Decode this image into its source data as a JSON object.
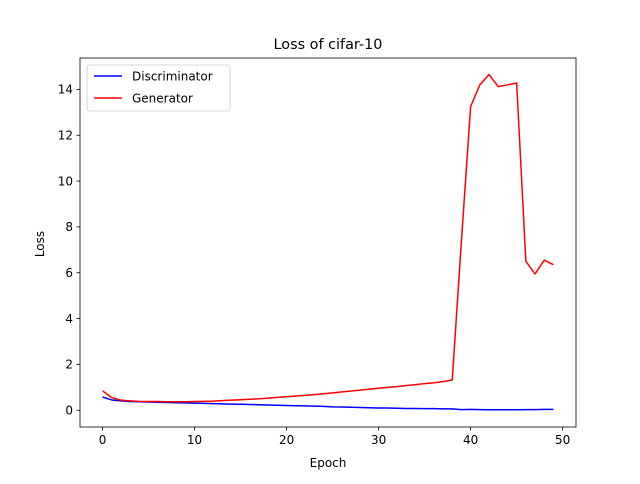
{
  "chart_data": {
    "type": "line",
    "title": "Loss of cifar-10",
    "xlabel": "Epoch",
    "ylabel": "Loss",
    "xlim": [
      -2.45,
      51.45
    ],
    "ylim": [
      -0.73,
      15.37
    ],
    "xticks": [
      0,
      10,
      20,
      30,
      40,
      50
    ],
    "yticks": [
      0,
      2,
      4,
      6,
      8,
      10,
      12,
      14
    ],
    "grid": false,
    "legend_position": "top-left",
    "x": [
      0,
      1,
      2,
      3,
      4,
      5,
      6,
      7,
      8,
      9,
      10,
      11,
      12,
      13,
      14,
      15,
      16,
      17,
      18,
      19,
      20,
      21,
      22,
      23,
      24,
      25,
      26,
      27,
      28,
      29,
      30,
      31,
      32,
      33,
      34,
      35,
      36,
      37,
      38,
      39,
      40,
      41,
      42,
      43,
      44,
      45,
      46,
      47,
      48,
      49
    ],
    "series": [
      {
        "name": "Discriminator",
        "color": "#0000ff",
        "values": [
          0.58,
          0.45,
          0.41,
          0.38,
          0.37,
          0.36,
          0.35,
          0.34,
          0.33,
          0.32,
          0.31,
          0.3,
          0.29,
          0.28,
          0.27,
          0.26,
          0.25,
          0.24,
          0.23,
          0.22,
          0.21,
          0.2,
          0.19,
          0.18,
          0.17,
          0.15,
          0.14,
          0.13,
          0.12,
          0.11,
          0.1,
          0.1,
          0.09,
          0.08,
          0.08,
          0.07,
          0.07,
          0.06,
          0.06,
          0.03,
          0.04,
          0.03,
          0.02,
          0.02,
          0.02,
          0.02,
          0.03,
          0.03,
          0.04,
          0.04
        ]
      },
      {
        "name": "Generator",
        "color": "#ff0000",
        "values": [
          0.85,
          0.55,
          0.44,
          0.41,
          0.39,
          0.38,
          0.38,
          0.37,
          0.37,
          0.37,
          0.38,
          0.39,
          0.4,
          0.42,
          0.44,
          0.46,
          0.48,
          0.5,
          0.53,
          0.56,
          0.59,
          0.62,
          0.65,
          0.68,
          0.72,
          0.76,
          0.8,
          0.84,
          0.88,
          0.92,
          0.96,
          1.0,
          1.03,
          1.08,
          1.12,
          1.16,
          1.2,
          1.25,
          1.32,
          7.4,
          13.25,
          14.2,
          14.65,
          14.12,
          14.2,
          14.28,
          6.5,
          5.95,
          6.55,
          6.35
        ]
      }
    ]
  }
}
